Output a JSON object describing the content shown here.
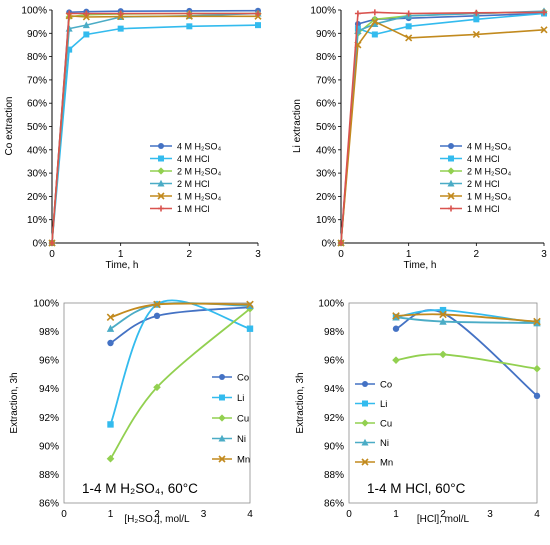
{
  "chart_data": [
    {
      "type": "line",
      "ylabel": "Co extraction",
      "xlabel": "Time, h",
      "xlim": [
        0,
        3
      ],
      "ylim": [
        0,
        100
      ],
      "x_ticks": [
        "0",
        "1",
        "2",
        "3"
      ],
      "y_ticks": [
        "0%",
        "10%",
        "20%",
        "30%",
        "40%",
        "50%",
        "60%",
        "70%",
        "80%",
        "90%",
        "100%"
      ],
      "grid": false,
      "legend_position": "bottom-right",
      "series": [
        {
          "name": "4 M H₂SO₄",
          "color": "#4472C4",
          "marker": "circle",
          "x": [
            0,
            0.25,
            0.5,
            1,
            2,
            3
          ],
          "y": [
            0,
            99,
            99.3,
            99.5,
            99.6,
            99.7
          ]
        },
        {
          "name": "4 M HCl",
          "color": "#33BBEE",
          "marker": "square",
          "x": [
            0,
            0.25,
            0.5,
            1,
            2,
            3
          ],
          "y": [
            0,
            83,
            89.5,
            92,
            93,
            93.5
          ]
        },
        {
          "name": "2 M H₂SO₄",
          "color": "#92D050",
          "marker": "diamond",
          "x": [
            0,
            0.25,
            0.5,
            1,
            2,
            3
          ],
          "y": [
            0,
            97,
            98,
            98.3,
            98.5,
            98.5
          ]
        },
        {
          "name": "2 M HCl",
          "color": "#4BACC6",
          "marker": "triangle",
          "x": [
            0,
            0.25,
            0.5,
            1,
            2,
            3
          ],
          "y": [
            0,
            92,
            93.5,
            97,
            97.5,
            98.5
          ]
        },
        {
          "name": "1 M H₂SO₄",
          "color": "#C28A1E",
          "marker": "x",
          "x": [
            0,
            0.25,
            0.5,
            1,
            2,
            3
          ],
          "y": [
            0,
            97.5,
            97,
            97.2,
            97.3,
            97.3
          ]
        },
        {
          "name": "1 M HCl",
          "color": "#D9534F",
          "marker": "plus",
          "x": [
            0,
            0.25,
            0.5,
            1,
            2,
            3
          ],
          "y": [
            0,
            98.5,
            98.5,
            98.5,
            98.5,
            98.5
          ]
        }
      ]
    },
    {
      "type": "line",
      "ylabel": "Li extraction",
      "xlabel": "Time, h",
      "xlim": [
        0,
        3
      ],
      "ylim": [
        0,
        100
      ],
      "x_ticks": [
        "0",
        "1",
        "2",
        "3"
      ],
      "y_ticks": [
        "0%",
        "10%",
        "20%",
        "30%",
        "40%",
        "50%",
        "60%",
        "70%",
        "80%",
        "90%",
        "100%"
      ],
      "grid": false,
      "legend_position": "bottom-right",
      "series": [
        {
          "name": "4 M H₂SO₄",
          "color": "#4472C4",
          "marker": "circle",
          "x": [
            0,
            0.25,
            0.5,
            1,
            2,
            3
          ],
          "y": [
            0,
            94,
            96,
            96.5,
            97.5,
            98.5
          ]
        },
        {
          "name": "4 M HCl",
          "color": "#33BBEE",
          "marker": "square",
          "x": [
            0,
            0.25,
            0.5,
            1,
            2,
            3
          ],
          "y": [
            0,
            92,
            89.5,
            93,
            96,
            98.5
          ]
        },
        {
          "name": "2 M H₂SO₄",
          "color": "#92D050",
          "marker": "diamond",
          "x": [
            0,
            0.25,
            0.5,
            1,
            2,
            3
          ],
          "y": [
            0,
            90,
            96,
            97.5,
            98.5,
            99.3
          ]
        },
        {
          "name": "2 M HCl",
          "color": "#4BACC6",
          "marker": "triangle",
          "x": [
            0,
            0.25,
            0.5,
            1,
            2,
            3
          ],
          "y": [
            0,
            91,
            94,
            97.5,
            98.5,
            99.5
          ]
        },
        {
          "name": "1 M H₂SO₄",
          "color": "#C28A1E",
          "marker": "x",
          "x": [
            0,
            0.25,
            0.5,
            1,
            2,
            3
          ],
          "y": [
            0,
            85,
            95,
            88,
            89.5,
            91.5
          ]
        },
        {
          "name": "1 M HCl",
          "color": "#D9534F",
          "marker": "plus",
          "x": [
            0,
            0.25,
            0.5,
            1,
            2,
            3
          ],
          "y": [
            0,
            98.5,
            99,
            98.5,
            98.8,
            99
          ]
        }
      ]
    },
    {
      "type": "line",
      "ylabel": "Extraction, 3h",
      "xlabel": "[H₂SO₄], mol/L",
      "annotation": "1-4 M H₂SO₄, 60°C",
      "xlim": [
        0,
        4
      ],
      "ylim": [
        86,
        100
      ],
      "x_ticks": [
        "0",
        "1",
        "2",
        "3",
        "4"
      ],
      "y_ticks": [
        "86%",
        "88%",
        "90%",
        "92%",
        "94%",
        "96%",
        "98%",
        "100%"
      ],
      "grid": false,
      "legend_position": "right",
      "series": [
        {
          "name": "Co",
          "color": "#4472C4",
          "marker": "circle",
          "x": [
            1,
            2,
            4
          ],
          "y": [
            97.2,
            99.1,
            99.7
          ]
        },
        {
          "name": "Li",
          "color": "#33BBEE",
          "marker": "square",
          "x": [
            1,
            2,
            4
          ],
          "y": [
            91.5,
            99.9,
            98.2
          ]
        },
        {
          "name": "Cu",
          "color": "#92D050",
          "marker": "diamond",
          "x": [
            1,
            2,
            4
          ],
          "y": [
            89.1,
            94.1,
            99.6
          ]
        },
        {
          "name": "Ni",
          "color": "#4BACC6",
          "marker": "triangle",
          "x": [
            1,
            2,
            4
          ],
          "y": [
            98.2,
            99.9,
            99.8
          ]
        },
        {
          "name": "Mn",
          "color": "#C28A1E",
          "marker": "x",
          "x": [
            1,
            2,
            4
          ],
          "y": [
            99.0,
            99.9,
            99.9
          ]
        }
      ]
    },
    {
      "type": "line",
      "ylabel": "Extraction, 3h",
      "xlabel": "[HCl], mol/L",
      "annotation": "1-4 M HCl, 60°C",
      "xlim": [
        0,
        4
      ],
      "ylim": [
        86,
        100
      ],
      "x_ticks": [
        "0",
        "1",
        "2",
        "3",
        "4"
      ],
      "y_ticks": [
        "86%",
        "88%",
        "90%",
        "92%",
        "94%",
        "96%",
        "98%",
        "100%"
      ],
      "grid": false,
      "legend_position": "left",
      "series": [
        {
          "name": "Co",
          "color": "#4472C4",
          "marker": "circle",
          "x": [
            1,
            2,
            4
          ],
          "y": [
            98.2,
            99.3,
            93.5
          ]
        },
        {
          "name": "Li",
          "color": "#33BBEE",
          "marker": "square",
          "x": [
            1,
            2,
            4
          ],
          "y": [
            99.0,
            99.5,
            98.6
          ]
        },
        {
          "name": "Cu",
          "color": "#92D050",
          "marker": "diamond",
          "x": [
            1,
            2,
            4
          ],
          "y": [
            96.0,
            96.4,
            95.4
          ]
        },
        {
          "name": "Ni",
          "color": "#4BACC6",
          "marker": "triangle",
          "x": [
            1,
            2,
            4
          ],
          "y": [
            99.0,
            98.7,
            98.6
          ]
        },
        {
          "name": "Mn",
          "color": "#C28A1E",
          "marker": "x",
          "x": [
            1,
            2,
            4
          ],
          "y": [
            99.1,
            99.2,
            98.7
          ]
        }
      ]
    }
  ]
}
